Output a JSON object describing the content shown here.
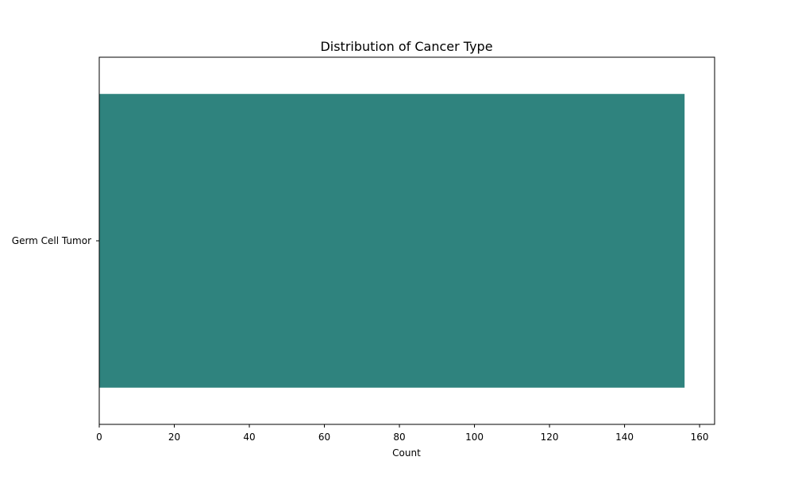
{
  "chart_data": {
    "type": "bar",
    "orientation": "horizontal",
    "title": "Distribution of Cancer Type",
    "xlabel": "Count",
    "ylabel": "",
    "categories": [
      "Germ Cell Tumor"
    ],
    "values": [
      156
    ],
    "xlim": [
      0,
      164
    ],
    "xticks": [
      0,
      20,
      40,
      60,
      80,
      100,
      120,
      140,
      160
    ],
    "grid": false,
    "legend": "none",
    "bar_color": "#2f837e"
  }
}
